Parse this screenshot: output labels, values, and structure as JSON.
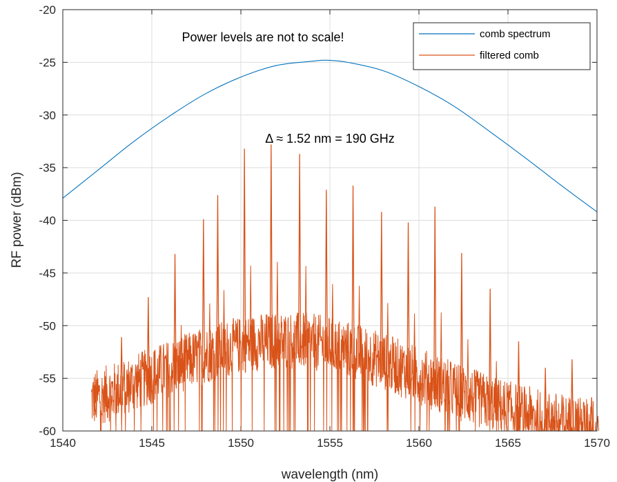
{
  "chart_data": {
    "type": "line",
    "xlabel": "wavelength (nm)",
    "ylabel": "RF power (dBm)",
    "xlim": [
      1540,
      1570
    ],
    "ylim": [
      -60,
      -20
    ],
    "xticks": [
      1540,
      1545,
      1550,
      1555,
      1560,
      1565,
      1570
    ],
    "yticks": [
      -20,
      -25,
      -30,
      -35,
      -40,
      -45,
      -50,
      -55,
      -60
    ],
    "grid": true,
    "legend_placement": "top-right",
    "annotations": [
      {
        "text": "Power levels are not to scale!",
        "x": 1550.9,
        "y": -22.5
      },
      {
        "text": "Δ ≈ 1.52 nm = 190 GHz",
        "x": 1554.3,
        "y": -32.2
      }
    ],
    "series": [
      {
        "name": "comb spectrum",
        "color": "#0072bd",
        "x": [
          1540,
          1542,
          1544,
          1546,
          1548,
          1550,
          1552,
          1554,
          1554.8,
          1556,
          1558,
          1560,
          1562,
          1564,
          1566,
          1568,
          1570
        ],
        "y": [
          -37.9,
          -35.2,
          -32.5,
          -30.1,
          -28.0,
          -26.4,
          -25.3,
          -24.9,
          -24.8,
          -25.0,
          -25.8,
          -27.3,
          -29.2,
          -31.6,
          -34.1,
          -36.7,
          -39.2
        ]
      },
      {
        "name": "filtered comb",
        "color": "#d95319",
        "x_range": [
          1541.6,
          1570
        ],
        "floor": -60,
        "peaks": [
          {
            "x": 1541.8,
            "y": -57.5
          },
          {
            "x": 1542.4,
            "y": -54.8
          },
          {
            "x": 1543.3,
            "y": -51.1
          },
          {
            "x": 1544.8,
            "y": -47.3
          },
          {
            "x": 1546.3,
            "y": -43.2
          },
          {
            "x": 1547.9,
            "y": -39.9
          },
          {
            "x": 1548.7,
            "y": -37.6
          },
          {
            "x": 1550.2,
            "y": -33.2
          },
          {
            "x": 1551.7,
            "y": -32.8
          },
          {
            "x": 1553.3,
            "y": -33.7
          },
          {
            "x": 1554.8,
            "y": -37.1
          },
          {
            "x": 1556.3,
            "y": -36.7
          },
          {
            "x": 1557.9,
            "y": -39.2
          },
          {
            "x": 1559.4,
            "y": -40.2
          },
          {
            "x": 1560.9,
            "y": -38.7
          },
          {
            "x": 1562.4,
            "y": -43.1
          },
          {
            "x": 1564.0,
            "y": -46.5
          },
          {
            "x": 1565.6,
            "y": -51.5
          },
          {
            "x": 1567.1,
            "y": -54.0
          },
          {
            "x": 1568.6,
            "y": -53.2
          },
          {
            "x": 1569.7,
            "y": -56.8
          }
        ]
      }
    ]
  }
}
